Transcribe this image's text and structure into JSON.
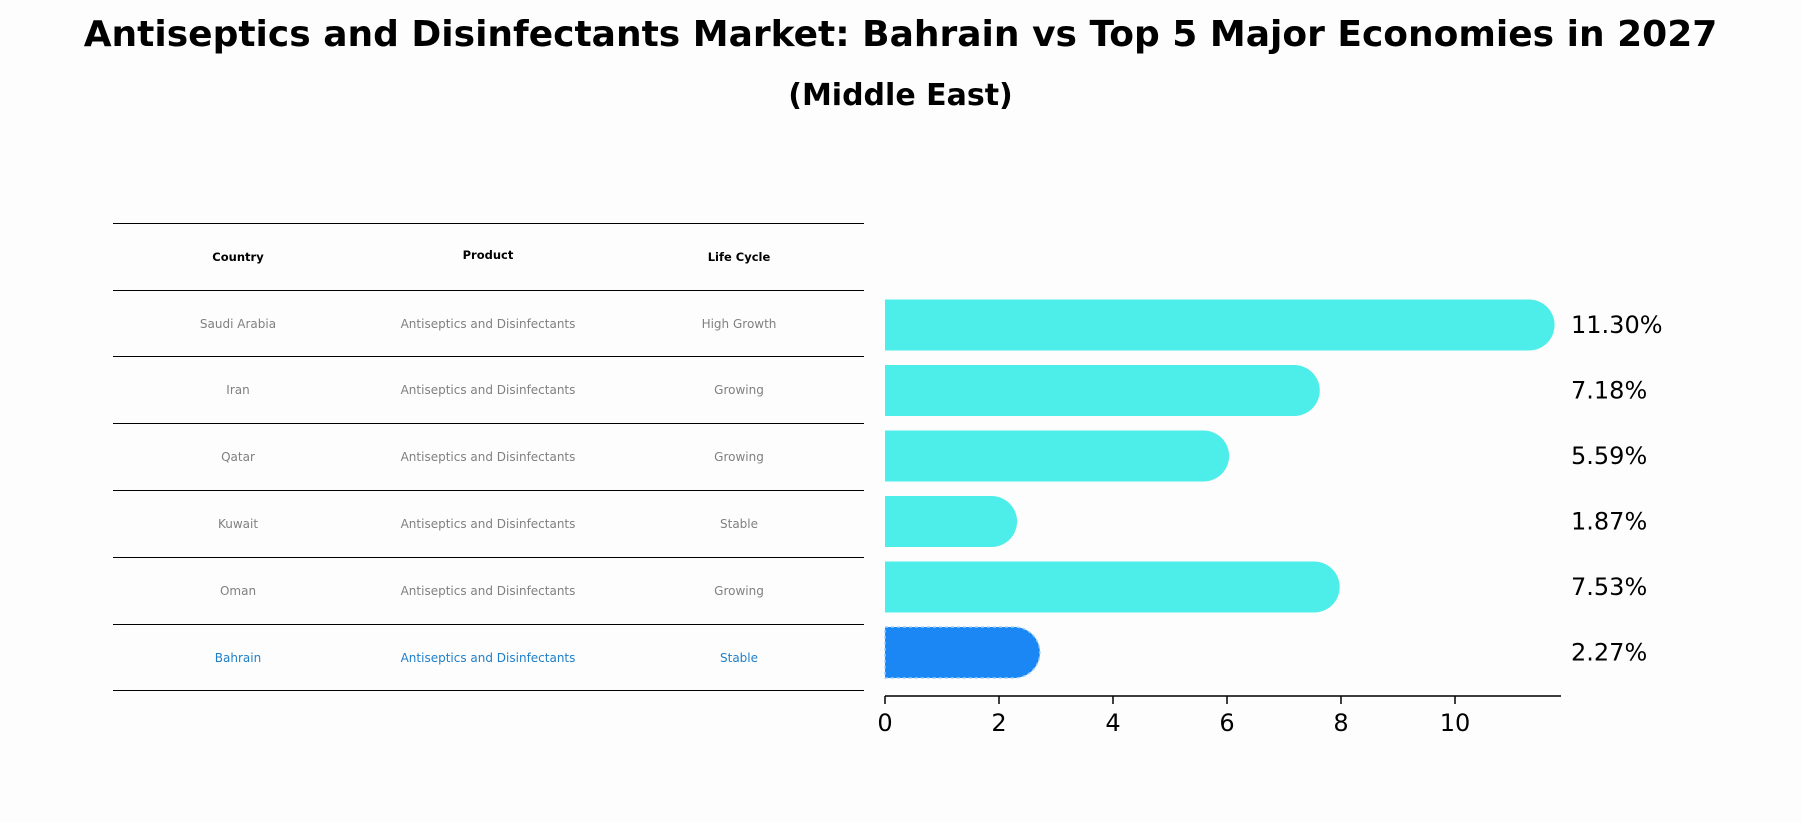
{
  "title": "Antiseptics and Disinfectants Market: Bahrain vs Top 5 Major Economies in 2027",
  "subtitle": "(Middle East)",
  "colors": {
    "bar": "#4dede9",
    "highlight": "#1a87f5",
    "muted_text": "#808080",
    "highlight_text": "#1f7fc9"
  },
  "table": {
    "headers": [
      "Country",
      "Product",
      "Life Cycle"
    ],
    "rows": [
      {
        "country": "Saudi Arabia",
        "product": "Antiseptics and Disinfectants",
        "life_cycle": "High Growth"
      },
      {
        "country": "Iran",
        "product": "Antiseptics and Disinfectants",
        "life_cycle": "Growing"
      },
      {
        "country": "Qatar",
        "product": "Antiseptics and Disinfectants",
        "life_cycle": "Growing"
      },
      {
        "country": "Kuwait",
        "product": "Antiseptics and Disinfectants",
        "life_cycle": "Stable"
      },
      {
        "country": "Oman",
        "product": "Antiseptics and Disinfectants",
        "life_cycle": "Growing"
      },
      {
        "country": "Bahrain",
        "product": "Antiseptics and Disinfectants",
        "life_cycle": "Stable"
      }
    ],
    "highlight_row": 5
  },
  "chart_data": {
    "type": "bar",
    "orientation": "horizontal",
    "categories": [
      "Saudi Arabia",
      "Iran",
      "Qatar",
      "Kuwait",
      "Oman",
      "Bahrain"
    ],
    "values": [
      11.3,
      7.18,
      5.59,
      1.87,
      7.53,
      2.27
    ],
    "data_labels": [
      "11.30%",
      "7.18%",
      "5.59%",
      "1.87%",
      "7.53%",
      "2.27%"
    ],
    "highlight": "Bahrain",
    "xlim": [
      0,
      11.8
    ],
    "xticks": [
      0,
      2,
      4,
      6,
      8,
      10
    ],
    "xlabel": "",
    "ylabel": "",
    "grid": false
  }
}
